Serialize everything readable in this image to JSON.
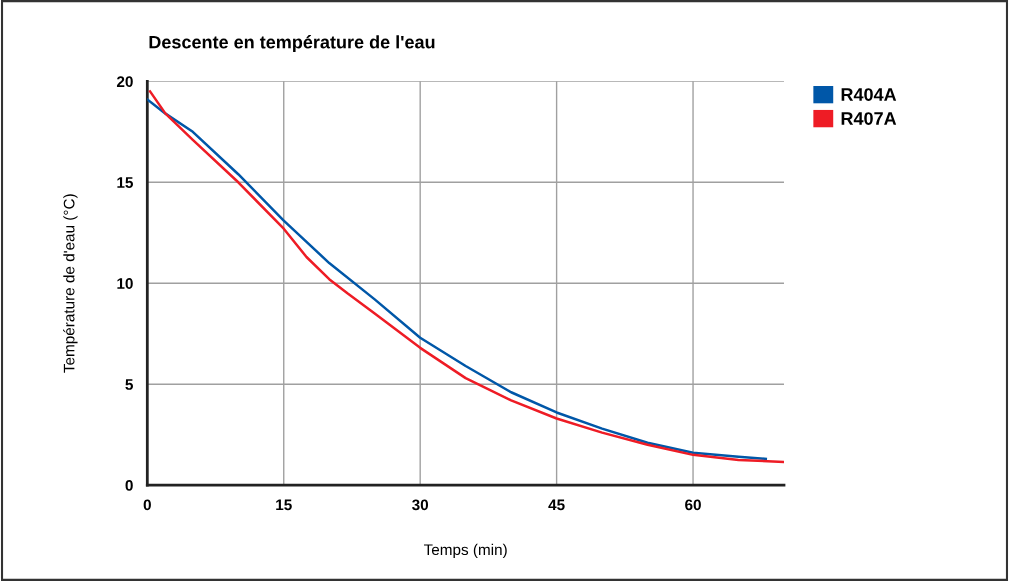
{
  "chart_data": {
    "type": "line",
    "title": "Descente en température de l'eau",
    "xlabel": "Temps (min)",
    "ylabel": "Température de d'eau (°C)",
    "xlim": [
      0,
      70
    ],
    "xticks": [
      0,
      15,
      30,
      45,
      60
    ],
    "ylim": [
      0,
      20
    ],
    "yticks": [
      0,
      5,
      10,
      15,
      20
    ],
    "grid": true,
    "legend": "top right",
    "marker": "none",
    "line_style": "solid",
    "series": [
      {
        "name": "R404A",
        "color": "#0057a8",
        "x": [
          0,
          2,
          5,
          10,
          15,
          20,
          25,
          30,
          35,
          40,
          45,
          50,
          55,
          60,
          65,
          68
        ],
        "values": [
          19.1,
          18.4,
          17.5,
          15.4,
          13.1,
          11.0,
          9.2,
          7.3,
          5.9,
          4.6,
          3.6,
          2.8,
          2.1,
          1.6,
          1.4,
          1.3
        ]
      },
      {
        "name": "R407A",
        "color": "#ee1c25",
        "x": [
          0.3,
          2,
          5,
          10,
          15,
          17.5,
          20,
          22,
          25,
          30,
          35,
          40,
          45,
          50,
          55,
          60,
          65,
          70
        ],
        "values": [
          19.5,
          18.4,
          17.1,
          15.0,
          12.7,
          11.3,
          10.2,
          9.5,
          8.5,
          6.8,
          5.3,
          4.2,
          3.3,
          2.6,
          2.0,
          1.5,
          1.25,
          1.15
        ]
      }
    ]
  }
}
